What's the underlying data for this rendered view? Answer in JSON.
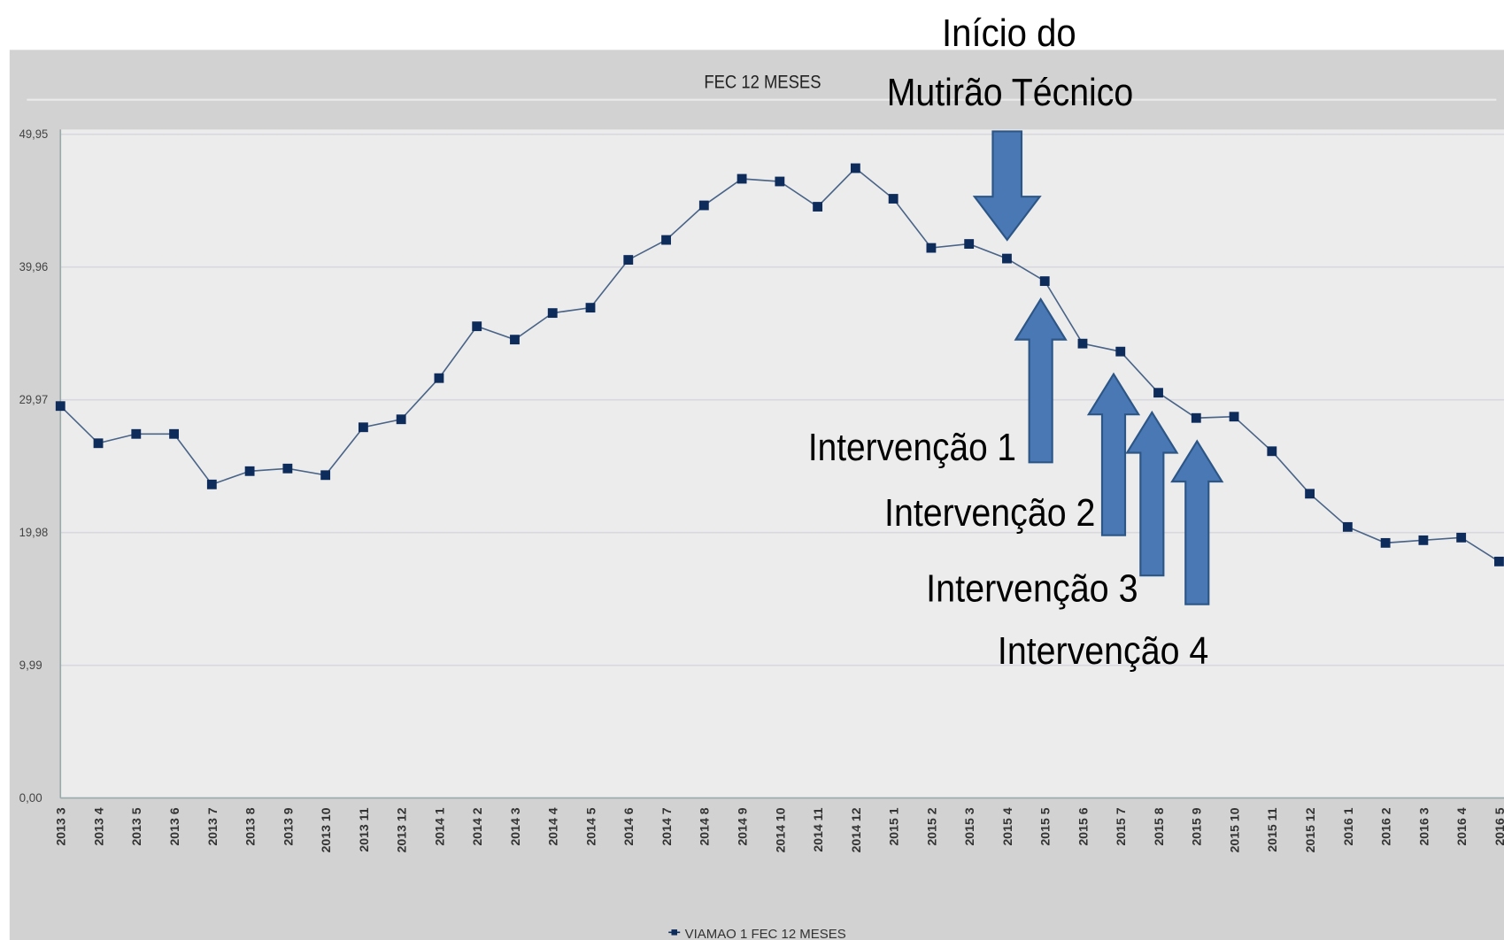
{
  "chart_data": {
    "type": "line",
    "title": "FEC 12 MESES",
    "categories": [
      "2013 3",
      "2013 4",
      "2013 5",
      "2013 6",
      "2013 7",
      "2013 8",
      "2013 9",
      "2013 10",
      "2013 11",
      "2013 12",
      "2014 1",
      "2014 2",
      "2014 3",
      "2014 4",
      "2014 5",
      "2014 6",
      "2014 7",
      "2014 8",
      "2014 9",
      "2014 10",
      "2014 11",
      "2014 12",
      "2015 1",
      "2015 2",
      "2015 3",
      "2015 4",
      "2015 5",
      "2015 6",
      "2015 7",
      "2015 8",
      "2015 9",
      "2015 10",
      "2015 11",
      "2015 12",
      "2016 1",
      "2016 2",
      "2016 3",
      "2016 4",
      "2016 5"
    ],
    "series": [
      {
        "name": "VIAMAO 1 FEC 12 MESES",
        "color": "#0d2c5c",
        "values": [
          29.5,
          26.7,
          27.4,
          27.4,
          23.6,
          24.6,
          24.8,
          24.3,
          27.9,
          28.5,
          31.6,
          35.5,
          34.5,
          36.5,
          36.9,
          40.5,
          42.0,
          44.6,
          46.6,
          46.4,
          44.5,
          47.4,
          45.1,
          41.4,
          41.7,
          40.6,
          38.9,
          34.2,
          33.6,
          30.5,
          28.6,
          28.7,
          26.1,
          22.9,
          20.4,
          19.2,
          19.4,
          19.6,
          17.8
        ]
      }
    ],
    "ylim": [
      0,
      49.95
    ],
    "yticks": [
      {
        "value": 0,
        "label": "0,00"
      },
      {
        "value": 9.99,
        "label": "9,99"
      },
      {
        "value": 19.98,
        "label": "19,98"
      },
      {
        "value": 29.97,
        "label": "29,97"
      },
      {
        "value": 39.96,
        "label": "39,96"
      },
      {
        "value": 49.95,
        "label": "49,95"
      }
    ],
    "grid": true,
    "annotations": [
      "Início do",
      "Mutirão Técnico",
      "Intervenção 1",
      "Intervenção 2",
      "Intervenção 3",
      "Intervenção 4"
    ]
  }
}
